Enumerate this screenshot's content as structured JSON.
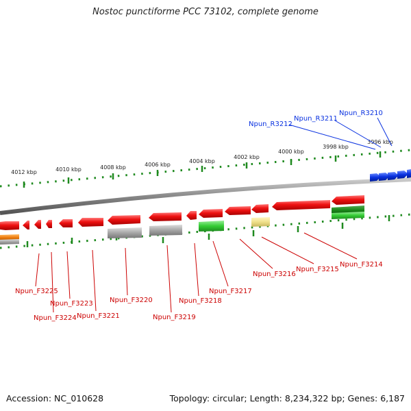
{
  "title": "Nostoc punctiforme PCC 73102, complete genome",
  "footer": {
    "accession": "Accession: NC_010628",
    "summary": "Topology: circular; Length: 8,234,322 bp; Genes: 6,187"
  },
  "colors": {
    "red": "#ee1111",
    "blue": "#0a32e0",
    "green_tick": "#1f8a1f",
    "gray": "#a6a6a6",
    "bright_green": "#33cc33",
    "dark_green": "#1a8a1a",
    "yellow": "#f0e08a",
    "orange": "#f07f10"
  },
  "scale_ticks": [
    "4012 kbp",
    "4010 kbp",
    "4008 kbp",
    "4006 kbp",
    "4004 kbp",
    "4002 kbp",
    "4000 kbp",
    "3998 kbp",
    "3996 kbp"
  ],
  "forward_labels": [
    "Npun_R3212",
    "Npun_R3211",
    "Npun_R3210"
  ],
  "reverse_labels": [
    "Npun_F3225",
    "Npun_F3224",
    "Npun_F3223",
    "Npun_F3221",
    "Npun_F3220",
    "Npun_F3219",
    "Npun_F3218",
    "Npun_F3217",
    "Npun_F3216",
    "Npun_F3215",
    "Npun_F3214"
  ]
}
